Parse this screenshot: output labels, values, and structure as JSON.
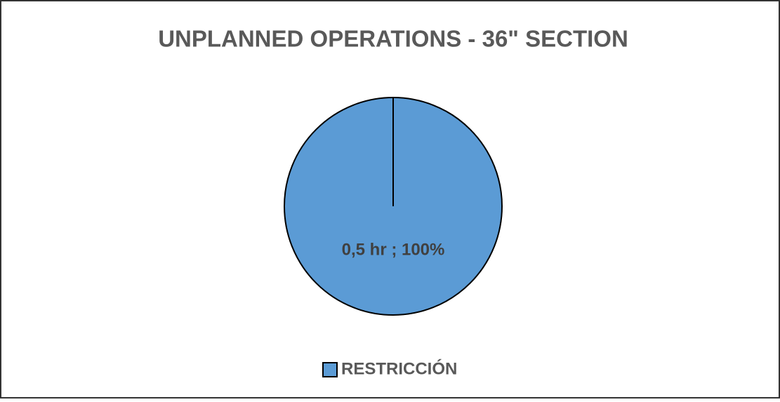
{
  "chart_data": {
    "type": "pie",
    "title": "UNPLANNED OPERATIONS - 36\" SECTION",
    "categories": [
      "RESTRICCIÓN"
    ],
    "values": [
      0.5
    ],
    "value_labels": [
      "0,5 hr ; 100%"
    ],
    "colors": [
      "#5b9bd5"
    ],
    "legend": "bottom"
  }
}
